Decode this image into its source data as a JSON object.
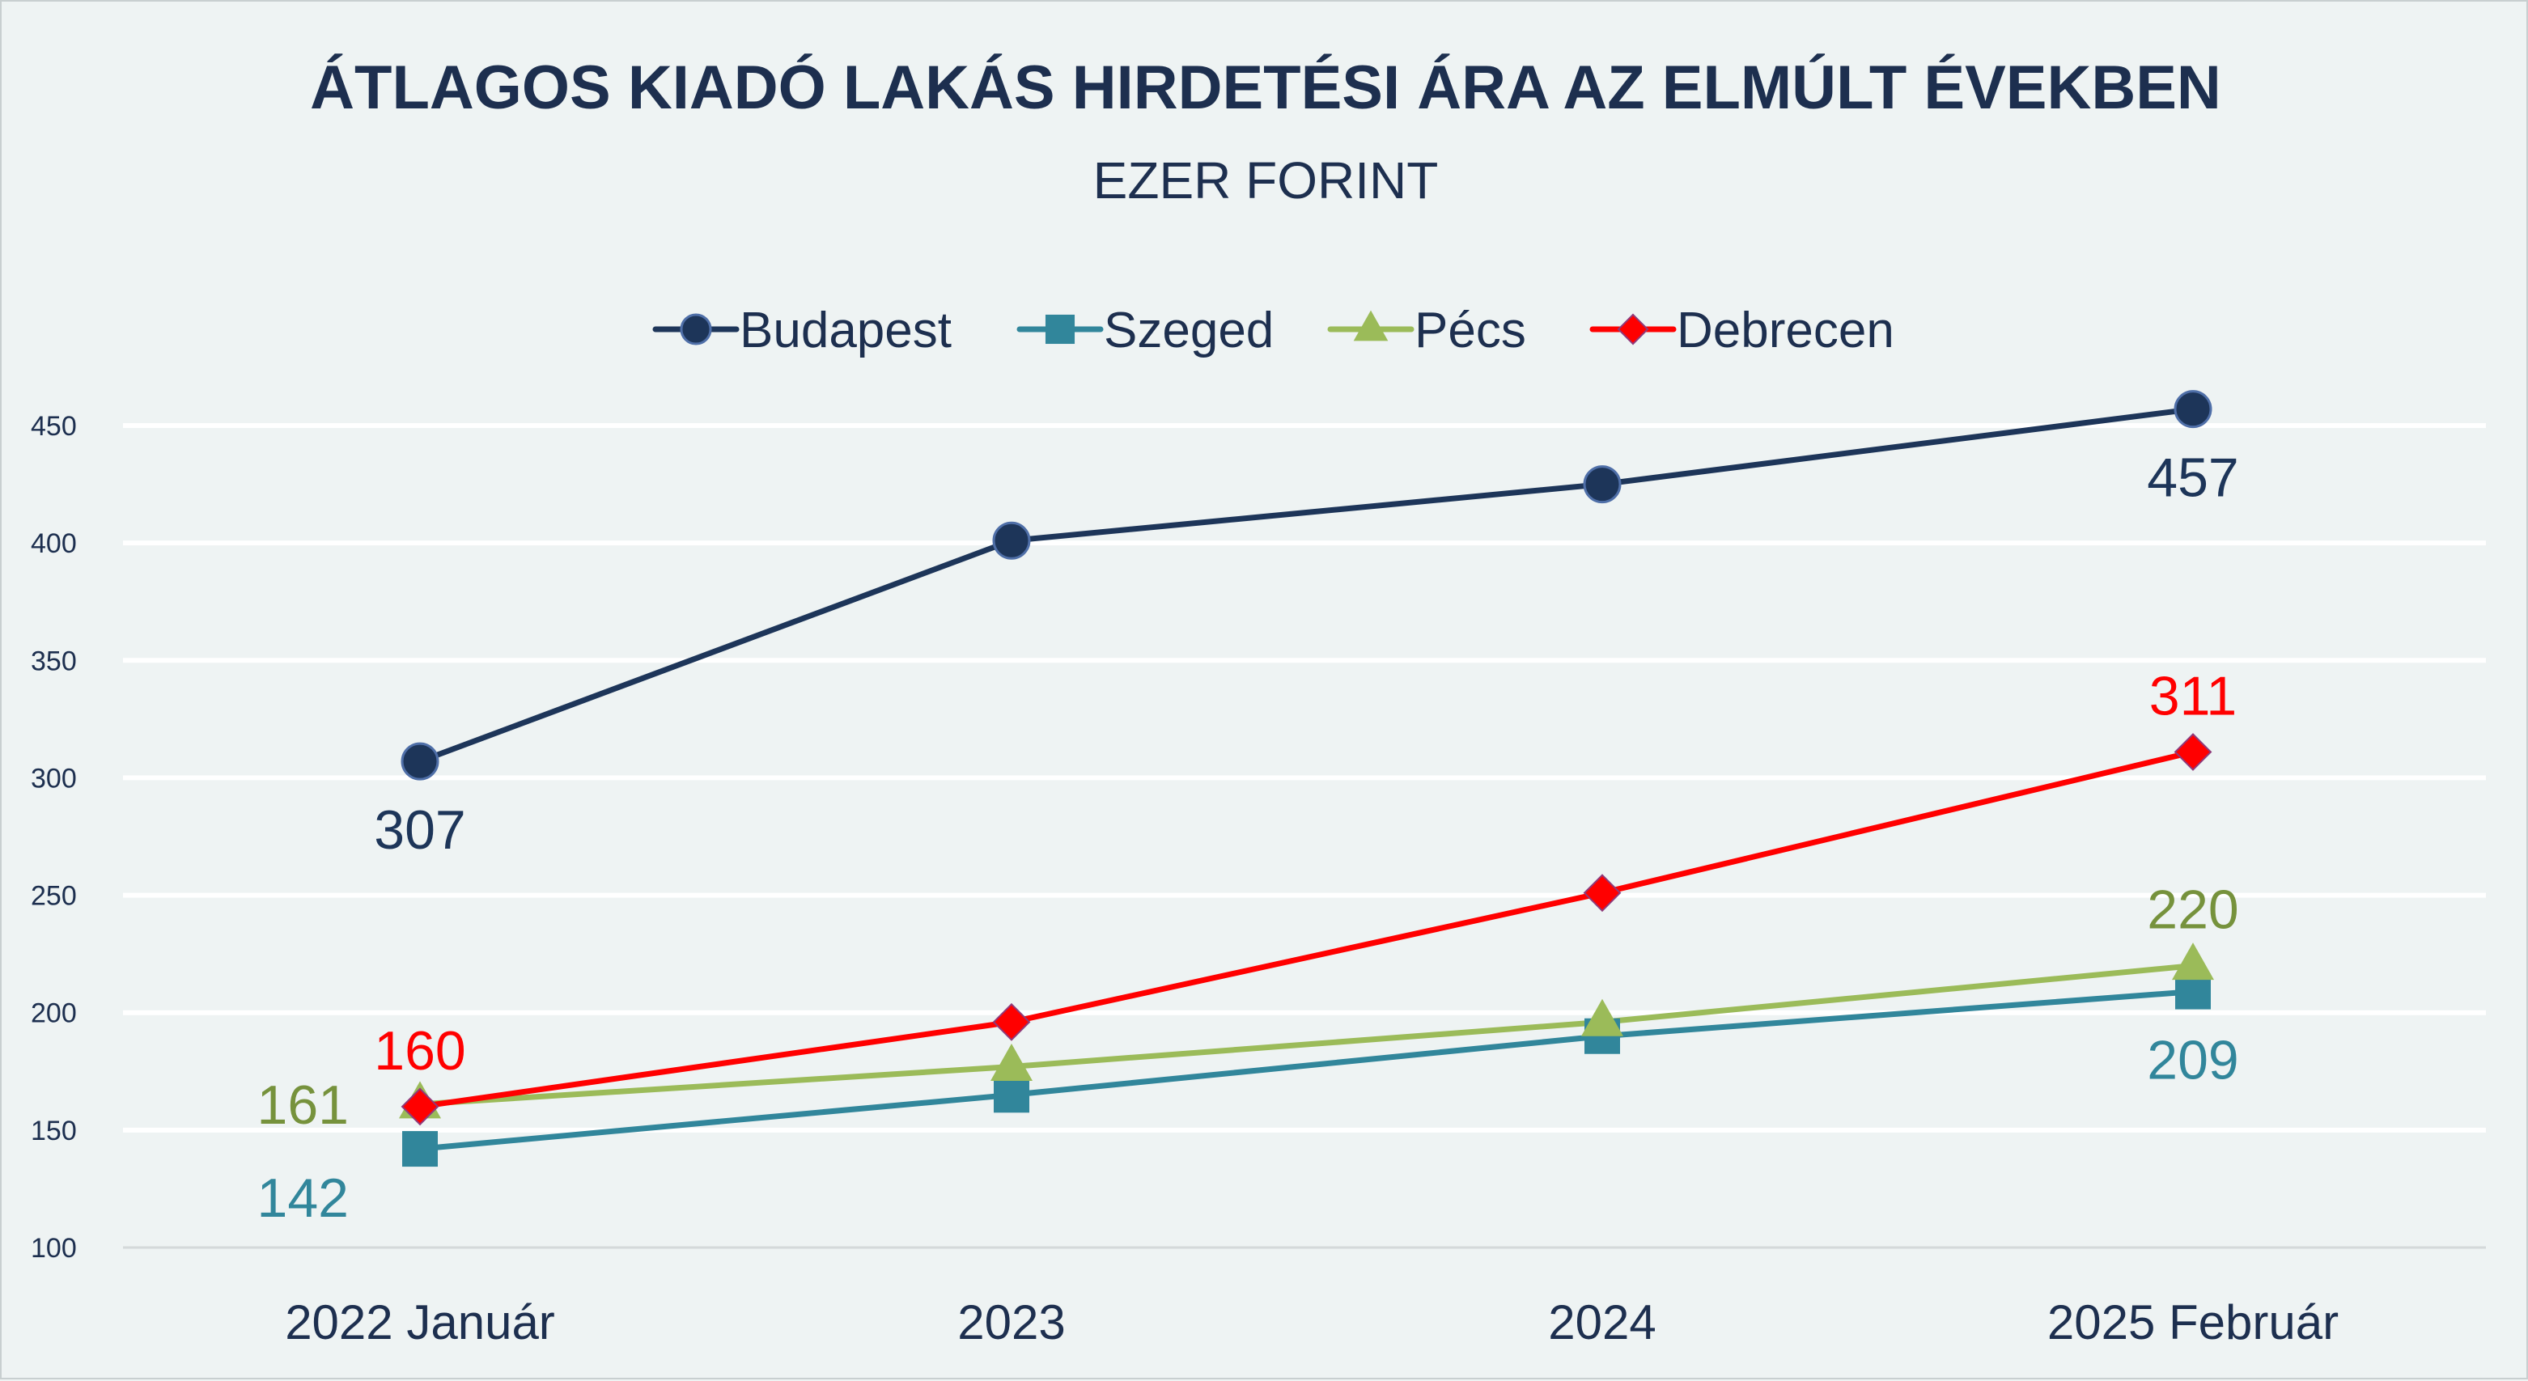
{
  "chart_data": {
    "type": "line",
    "title": "ÁTLAGOS  KIADÓ LAKÁS HIRDETÉSI ÁRA AZ ELMÚLT ÉVEKBEN",
    "subtitle": "EZER FORINT",
    "categories": [
      "2022 Január",
      "2023",
      "2024",
      "2025 Február"
    ],
    "ylim": [
      100,
      450
    ],
    "yticks": [
      100,
      150,
      200,
      250,
      300,
      350,
      400,
      450
    ],
    "ytick_labels": [
      "100",
      "150",
      "200",
      "250",
      "300",
      "350",
      "400",
      "450"
    ],
    "grid": true,
    "legend_position": "top-center",
    "series": [
      {
        "name": "Budapest",
        "values": [
          307,
          401,
          425,
          457
        ],
        "color": "#1d3559",
        "marker": "circle",
        "labels": [
          {
            "index": 0,
            "text": "307",
            "pos": "below"
          },
          {
            "index": 3,
            "text": "457",
            "pos": "below"
          }
        ]
      },
      {
        "name": "Szeged",
        "values": [
          142,
          165,
          190,
          209
        ],
        "color": "#31869b",
        "marker": "square",
        "labels": [
          {
            "index": 0,
            "text": "142",
            "pos": "below-left"
          },
          {
            "index": 3,
            "text": "209",
            "pos": "below"
          }
        ]
      },
      {
        "name": "Pécs",
        "values": [
          161,
          177,
          196,
          220
        ],
        "color": "#9bbb59",
        "label_color": "#76923c",
        "marker": "triangle",
        "labels": [
          {
            "index": 0,
            "text": "161",
            "pos": "left"
          },
          {
            "index": 3,
            "text": "220",
            "pos": "above"
          }
        ]
      },
      {
        "name": "Debrecen",
        "values": [
          160,
          196,
          251,
          311
        ],
        "color": "#ff0000",
        "marker": "diamond",
        "labels": [
          {
            "index": 0,
            "text": "160",
            "pos": "above"
          },
          {
            "index": 3,
            "text": "311",
            "pos": "above"
          }
        ]
      }
    ]
  }
}
